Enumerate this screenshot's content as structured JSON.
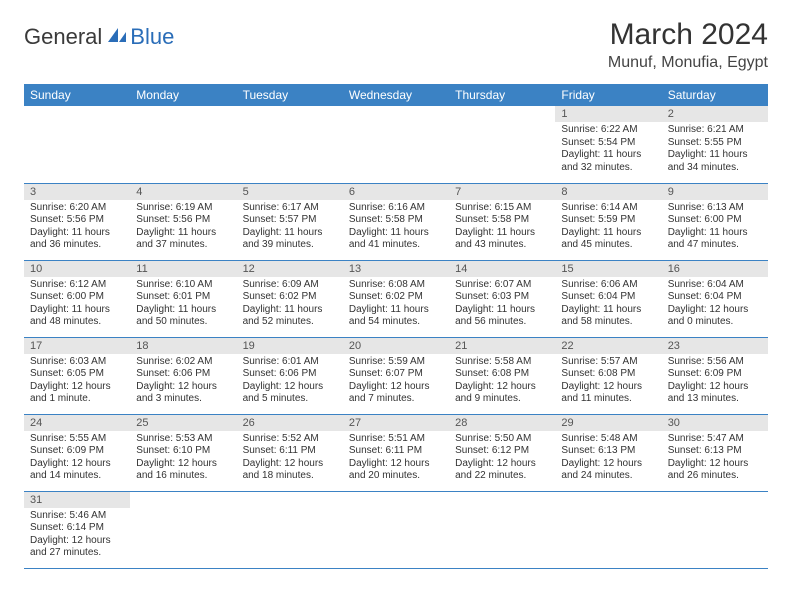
{
  "logo": {
    "text1": "General",
    "text2": "Blue"
  },
  "title": "March 2024",
  "location": "Munuf, Monufia, Egypt",
  "colors": {
    "header_bg": "#3b82c4",
    "header_fg": "#ffffff",
    "daynum_bg": "#e6e6e6",
    "row_border": "#3b82c4",
    "logo_blue": "#2a6db8",
    "logo_text": "#3a3a3a"
  },
  "day_headers": [
    "Sunday",
    "Monday",
    "Tuesday",
    "Wednesday",
    "Thursday",
    "Friday",
    "Saturday"
  ],
  "weeks": [
    [
      null,
      null,
      null,
      null,
      null,
      {
        "n": "1",
        "sr": "Sunrise: 6:22 AM",
        "ss": "Sunset: 5:54 PM",
        "dl": "Daylight: 11 hours and 32 minutes."
      },
      {
        "n": "2",
        "sr": "Sunrise: 6:21 AM",
        "ss": "Sunset: 5:55 PM",
        "dl": "Daylight: 11 hours and 34 minutes."
      }
    ],
    [
      {
        "n": "3",
        "sr": "Sunrise: 6:20 AM",
        "ss": "Sunset: 5:56 PM",
        "dl": "Daylight: 11 hours and 36 minutes."
      },
      {
        "n": "4",
        "sr": "Sunrise: 6:19 AM",
        "ss": "Sunset: 5:56 PM",
        "dl": "Daylight: 11 hours and 37 minutes."
      },
      {
        "n": "5",
        "sr": "Sunrise: 6:17 AM",
        "ss": "Sunset: 5:57 PM",
        "dl": "Daylight: 11 hours and 39 minutes."
      },
      {
        "n": "6",
        "sr": "Sunrise: 6:16 AM",
        "ss": "Sunset: 5:58 PM",
        "dl": "Daylight: 11 hours and 41 minutes."
      },
      {
        "n": "7",
        "sr": "Sunrise: 6:15 AM",
        "ss": "Sunset: 5:58 PM",
        "dl": "Daylight: 11 hours and 43 minutes."
      },
      {
        "n": "8",
        "sr": "Sunrise: 6:14 AM",
        "ss": "Sunset: 5:59 PM",
        "dl": "Daylight: 11 hours and 45 minutes."
      },
      {
        "n": "9",
        "sr": "Sunrise: 6:13 AM",
        "ss": "Sunset: 6:00 PM",
        "dl": "Daylight: 11 hours and 47 minutes."
      }
    ],
    [
      {
        "n": "10",
        "sr": "Sunrise: 6:12 AM",
        "ss": "Sunset: 6:00 PM",
        "dl": "Daylight: 11 hours and 48 minutes."
      },
      {
        "n": "11",
        "sr": "Sunrise: 6:10 AM",
        "ss": "Sunset: 6:01 PM",
        "dl": "Daylight: 11 hours and 50 minutes."
      },
      {
        "n": "12",
        "sr": "Sunrise: 6:09 AM",
        "ss": "Sunset: 6:02 PM",
        "dl": "Daylight: 11 hours and 52 minutes."
      },
      {
        "n": "13",
        "sr": "Sunrise: 6:08 AM",
        "ss": "Sunset: 6:02 PM",
        "dl": "Daylight: 11 hours and 54 minutes."
      },
      {
        "n": "14",
        "sr": "Sunrise: 6:07 AM",
        "ss": "Sunset: 6:03 PM",
        "dl": "Daylight: 11 hours and 56 minutes."
      },
      {
        "n": "15",
        "sr": "Sunrise: 6:06 AM",
        "ss": "Sunset: 6:04 PM",
        "dl": "Daylight: 11 hours and 58 minutes."
      },
      {
        "n": "16",
        "sr": "Sunrise: 6:04 AM",
        "ss": "Sunset: 6:04 PM",
        "dl": "Daylight: 12 hours and 0 minutes."
      }
    ],
    [
      {
        "n": "17",
        "sr": "Sunrise: 6:03 AM",
        "ss": "Sunset: 6:05 PM",
        "dl": "Daylight: 12 hours and 1 minute."
      },
      {
        "n": "18",
        "sr": "Sunrise: 6:02 AM",
        "ss": "Sunset: 6:06 PM",
        "dl": "Daylight: 12 hours and 3 minutes."
      },
      {
        "n": "19",
        "sr": "Sunrise: 6:01 AM",
        "ss": "Sunset: 6:06 PM",
        "dl": "Daylight: 12 hours and 5 minutes."
      },
      {
        "n": "20",
        "sr": "Sunrise: 5:59 AM",
        "ss": "Sunset: 6:07 PM",
        "dl": "Daylight: 12 hours and 7 minutes."
      },
      {
        "n": "21",
        "sr": "Sunrise: 5:58 AM",
        "ss": "Sunset: 6:08 PM",
        "dl": "Daylight: 12 hours and 9 minutes."
      },
      {
        "n": "22",
        "sr": "Sunrise: 5:57 AM",
        "ss": "Sunset: 6:08 PM",
        "dl": "Daylight: 12 hours and 11 minutes."
      },
      {
        "n": "23",
        "sr": "Sunrise: 5:56 AM",
        "ss": "Sunset: 6:09 PM",
        "dl": "Daylight: 12 hours and 13 minutes."
      }
    ],
    [
      {
        "n": "24",
        "sr": "Sunrise: 5:55 AM",
        "ss": "Sunset: 6:09 PM",
        "dl": "Daylight: 12 hours and 14 minutes."
      },
      {
        "n": "25",
        "sr": "Sunrise: 5:53 AM",
        "ss": "Sunset: 6:10 PM",
        "dl": "Daylight: 12 hours and 16 minutes."
      },
      {
        "n": "26",
        "sr": "Sunrise: 5:52 AM",
        "ss": "Sunset: 6:11 PM",
        "dl": "Daylight: 12 hours and 18 minutes."
      },
      {
        "n": "27",
        "sr": "Sunrise: 5:51 AM",
        "ss": "Sunset: 6:11 PM",
        "dl": "Daylight: 12 hours and 20 minutes."
      },
      {
        "n": "28",
        "sr": "Sunrise: 5:50 AM",
        "ss": "Sunset: 6:12 PM",
        "dl": "Daylight: 12 hours and 22 minutes."
      },
      {
        "n": "29",
        "sr": "Sunrise: 5:48 AM",
        "ss": "Sunset: 6:13 PM",
        "dl": "Daylight: 12 hours and 24 minutes."
      },
      {
        "n": "30",
        "sr": "Sunrise: 5:47 AM",
        "ss": "Sunset: 6:13 PM",
        "dl": "Daylight: 12 hours and 26 minutes."
      }
    ],
    [
      {
        "n": "31",
        "sr": "Sunrise: 5:46 AM",
        "ss": "Sunset: 6:14 PM",
        "dl": "Daylight: 12 hours and 27 minutes."
      },
      null,
      null,
      null,
      null,
      null,
      null
    ]
  ]
}
